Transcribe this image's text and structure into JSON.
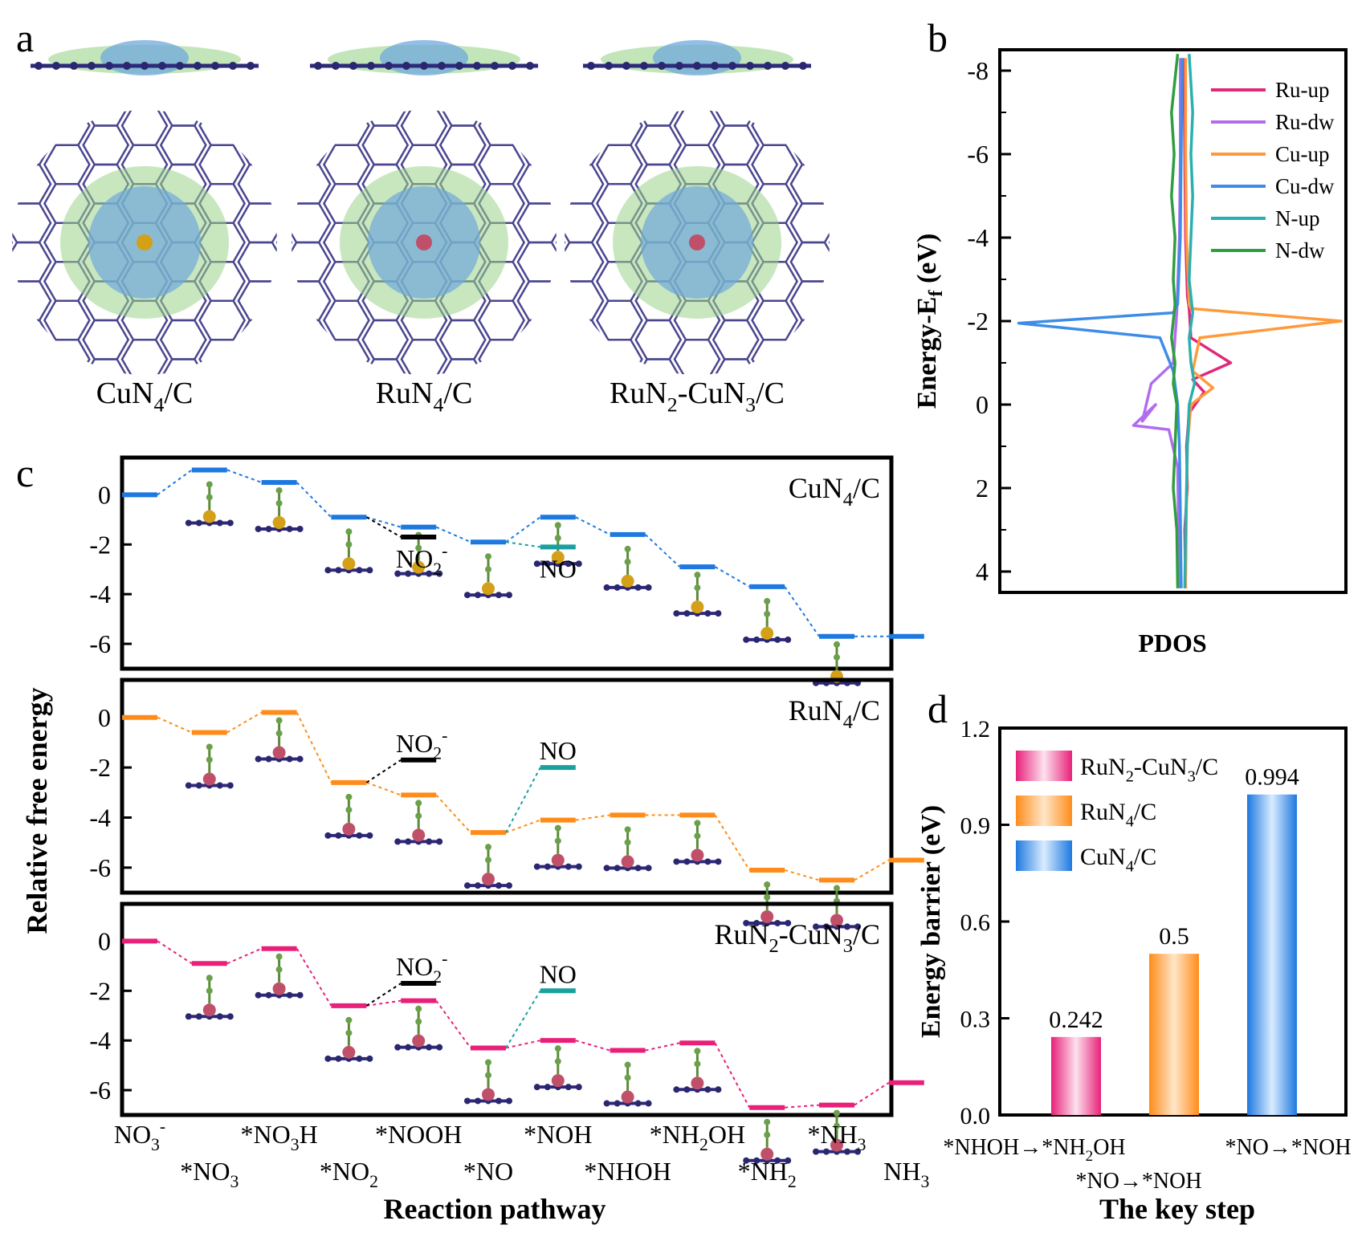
{
  "panel_letters": {
    "a": "a",
    "b": "b",
    "c": "c",
    "d": "d"
  },
  "panel_a": {
    "structures": [
      {
        "label": "CuN",
        "sub1": "4",
        "mid": "/C",
        "sub2": "",
        "tail": "",
        "metal": "#d4a017"
      },
      {
        "label": "RuN",
        "sub1": "4",
        "mid": "/C",
        "sub2": "",
        "tail": "",
        "metal": "#c0506a"
      },
      {
        "label": "RuN",
        "sub1": "2",
        "mid": "-CuN",
        "sub2": "3",
        "tail": "/C",
        "metal": "#c0506a"
      }
    ]
  },
  "chart_data": [
    {
      "id": "pdos",
      "type": "line",
      "xlabel": "PDOS",
      "ylabel_main": "Energy-E",
      "ylabel_sub": "f",
      "ylabel_tail": " (eV)",
      "ylim": [
        -8.5,
        4.5
      ],
      "y_inverted": true,
      "yticks": [
        -8,
        -6,
        -4,
        -2,
        0,
        2,
        4
      ],
      "legend_position": "top-right",
      "series": [
        {
          "name": "Ru-up",
          "color": "#e0287a",
          "points": [
            [
              0.02,
              -8.3
            ],
            [
              0.03,
              -6.0
            ],
            [
              0.04,
              -4.0
            ],
            [
              0.06,
              -2.6
            ],
            [
              0.08,
              -2.3
            ],
            [
              0.1,
              -1.6
            ],
            [
              0.55,
              -1.0
            ],
            [
              0.12,
              -0.6
            ],
            [
              0.25,
              -0.3
            ],
            [
              0.08,
              0.2
            ],
            [
              0.05,
              1.0
            ],
            [
              0.06,
              2.0
            ],
            [
              0.03,
              3.0
            ],
            [
              0.04,
              4.4
            ]
          ]
        },
        {
          "name": "Ru-dw",
          "color": "#b26cf0",
          "points": [
            [
              -0.02,
              -8.3
            ],
            [
              -0.02,
              -6.0
            ],
            [
              -0.03,
              -4.0
            ],
            [
              -0.06,
              -2.2
            ],
            [
              -0.1,
              -1.0
            ],
            [
              -0.35,
              -0.5
            ],
            [
              -0.45,
              0.4
            ],
            [
              -0.3,
              0.0
            ],
            [
              -0.55,
              0.5
            ],
            [
              -0.15,
              0.6
            ],
            [
              -0.05,
              1.5
            ],
            [
              -0.04,
              3.0
            ],
            [
              -0.03,
              4.4
            ]
          ]
        },
        {
          "name": "Cu-up",
          "color": "#ff9a3c",
          "points": [
            [
              0.04,
              -8.3
            ],
            [
              0.04,
              -6.0
            ],
            [
              0.05,
              -4.0
            ],
            [
              0.08,
              -2.4
            ],
            [
              0.1,
              -2.3
            ],
            [
              1.8,
              -2.0
            ],
            [
              0.2,
              -1.6
            ],
            [
              0.12,
              -0.8
            ],
            [
              0.35,
              -0.4
            ],
            [
              0.1,
              0.0
            ],
            [
              0.06,
              1.0
            ],
            [
              0.05,
              2.5
            ],
            [
              0.04,
              4.4
            ]
          ]
        },
        {
          "name": "Cu-dw",
          "color": "#3d8de8",
          "points": [
            [
              0.0,
              -8.3
            ],
            [
              -0.01,
              -6.0
            ],
            [
              -0.02,
              -4.0
            ],
            [
              -0.05,
              -2.4
            ],
            [
              -0.1,
              -2.2
            ],
            [
              -1.85,
              -1.95
            ],
            [
              -0.25,
              -1.6
            ],
            [
              -0.1,
              -0.8
            ],
            [
              -0.05,
              0.0
            ],
            [
              -0.03,
              1.0
            ],
            [
              -0.02,
              2.5
            ],
            [
              -0.01,
              4.4
            ]
          ]
        },
        {
          "name": "N-up",
          "color": "#2ab0b0",
          "points": [
            [
              0.08,
              -8.4
            ],
            [
              0.12,
              -7.0
            ],
            [
              0.1,
              -6.0
            ],
            [
              0.12,
              -5.0
            ],
            [
              0.1,
              -4.0
            ],
            [
              0.08,
              -3.0
            ],
            [
              0.12,
              -2.2
            ],
            [
              0.08,
              -1.6
            ],
            [
              0.1,
              -1.0
            ],
            [
              0.14,
              -0.5
            ],
            [
              0.08,
              0.0
            ],
            [
              0.06,
              1.0
            ],
            [
              0.05,
              2.0
            ],
            [
              0.04,
              3.0
            ],
            [
              0.03,
              4.4
            ]
          ]
        },
        {
          "name": "N-dw",
          "color": "#2e9e3e",
          "points": [
            [
              -0.05,
              -8.4
            ],
            [
              -0.12,
              -7.0
            ],
            [
              -0.09,
              -6.0
            ],
            [
              -0.12,
              -5.0
            ],
            [
              -0.08,
              -4.0
            ],
            [
              -0.1,
              -3.0
            ],
            [
              -0.08,
              -2.4
            ],
            [
              -0.12,
              -1.6
            ],
            [
              -0.08,
              -1.0
            ],
            [
              -0.1,
              -0.5
            ],
            [
              -0.06,
              0.0
            ],
            [
              -0.08,
              1.0
            ],
            [
              -0.1,
              2.0
            ],
            [
              -0.06,
              3.0
            ],
            [
              -0.05,
              4.4
            ]
          ]
        }
      ]
    },
    {
      "id": "free_energy",
      "type": "line",
      "xlabel": "Reaction pathway",
      "ylabel": "Relative free energy",
      "ylim": [
        -7,
        1.5
      ],
      "yticks": [
        0,
        -2,
        -4,
        -6
      ],
      "categories": [
        {
          "pre": "NO",
          "sub": "3",
          "sup": "-",
          "post": ""
        },
        {
          "pre": "*NO",
          "sub": "3",
          "sup": "",
          "post": ""
        },
        {
          "pre": "*NO",
          "sub": "3",
          "sup": "",
          "post": "H"
        },
        {
          "pre": "*NO",
          "sub": "2",
          "sup": "",
          "post": ""
        },
        {
          "pre": "*NOOH",
          "sub": "",
          "sup": "",
          "post": ""
        },
        {
          "pre": "*NO",
          "sub": "",
          "sup": "",
          "post": ""
        },
        {
          "pre": "*NOH",
          "sub": "",
          "sup": "",
          "post": ""
        },
        {
          "pre": "*NHOH",
          "sub": "",
          "sup": "",
          "post": ""
        },
        {
          "pre": "*NH",
          "sub": "2",
          "sup": "",
          "post": "OH"
        },
        {
          "pre": "*NH",
          "sub": "2",
          "sup": "",
          "post": ""
        },
        {
          "pre": "*NH",
          "sub": "3",
          "sup": "",
          "post": ""
        },
        {
          "pre": "NH",
          "sub": "3",
          "sup": "",
          "post": ""
        }
      ],
      "panels": [
        {
          "name": "CuN4/C",
          "title_pre": "CuN",
          "title_sub": "4",
          "title_mid": "/C",
          "title_sub2": "",
          "title_tail": "",
          "color": "#1d78e0",
          "metal": "#d4a017",
          "levels": [
            0,
            1.0,
            0.5,
            -0.9,
            -1.3,
            -1.9,
            -0.9,
            -1.6,
            -2.9,
            -3.7,
            -5.7,
            -5.7
          ],
          "no2": {
            "label": "NO",
            "sub": "2",
            "sup": "-",
            "value": -1.7
          },
          "no": {
            "label": "NO",
            "value": -2.1
          }
        },
        {
          "name": "RuN4/C",
          "title_pre": "RuN",
          "title_sub": "4",
          "title_mid": "/C",
          "title_sub2": "",
          "title_tail": "",
          "color": "#ff8c1a",
          "metal": "#c0506a",
          "levels": [
            0,
            -0.6,
            0.2,
            -2.6,
            -3.1,
            -4.6,
            -4.1,
            -3.9,
            -3.9,
            -6.1,
            -6.5,
            -5.7
          ],
          "no2": {
            "label": "NO",
            "sub": "2",
            "sup": "-",
            "value": -1.7
          },
          "no": {
            "label": "NO",
            "value": -2.0
          }
        },
        {
          "name": "RuN2-CuN3/C",
          "title_pre": "RuN",
          "title_sub": "2",
          "title_mid": "-CuN",
          "title_sub2": "3",
          "title_tail": "/C",
          "color": "#e8207a",
          "metal": "#c0506a",
          "levels": [
            0,
            -0.9,
            -0.3,
            -2.6,
            -2.4,
            -4.3,
            -4.0,
            -4.4,
            -4.1,
            -6.7,
            -6.6,
            -5.7
          ],
          "no2": {
            "label": "NO",
            "sub": "2",
            "sup": "-",
            "value": -1.7
          },
          "no": {
            "label": "NO",
            "value": -2.0
          }
        }
      ]
    },
    {
      "id": "energy_barrier",
      "type": "bar",
      "xlabel": "The key step",
      "ylabel": "Energy barrier (eV)",
      "ylim": [
        0,
        1.2
      ],
      "yticks": [
        "0.0",
        "0.3",
        "0.6",
        "0.9",
        "1.2"
      ],
      "legend_position": "top-left",
      "bars": [
        {
          "catalyst_pre": "RuN",
          "sub1": "2",
          "mid": "-CuN",
          "sub2": "3",
          "tail": "/C",
          "value": 0.242,
          "label": "0.242",
          "step": "*NHOH→*NH",
          "step_sub": "2",
          "step_tail": "OH",
          "color": "#e8207a"
        },
        {
          "catalyst_pre": "RuN",
          "sub1": "4",
          "mid": "/C",
          "sub2": "",
          "tail": "",
          "value": 0.5,
          "label": "0.5",
          "step": "*NO→*NOH",
          "step_sub": "",
          "step_tail": "",
          "color": "#ff8c1a"
        },
        {
          "catalyst_pre": "CuN",
          "sub1": "4",
          "mid": "/C",
          "sub2": "",
          "tail": "",
          "value": 0.994,
          "label": "0.994",
          "step": "*NO→*NOH",
          "step_sub": "",
          "step_tail": "",
          "color": "#1d78e0"
        }
      ]
    }
  ]
}
